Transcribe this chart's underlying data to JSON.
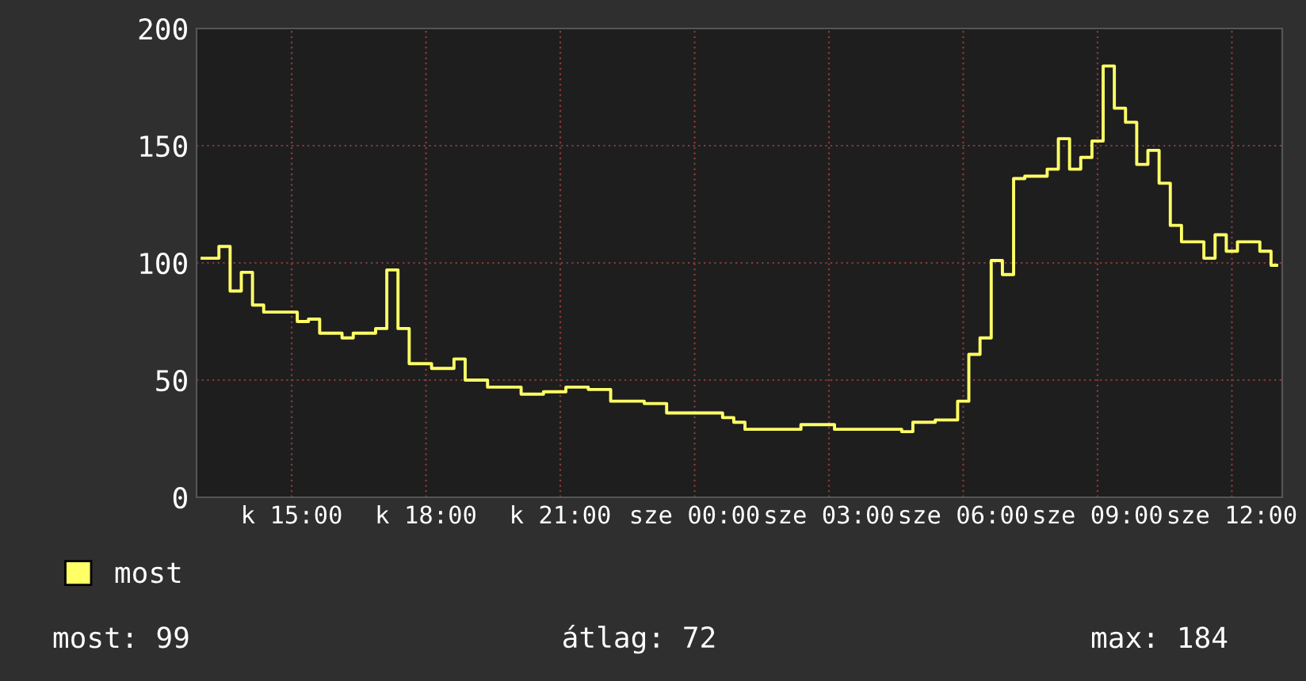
{
  "chart_data": {
    "type": "step",
    "ylim": [
      0,
      200
    ],
    "yticks": [
      0,
      50,
      100,
      150,
      200
    ],
    "categories": [
      null,
      null,
      null,
      null,
      null,
      null,
      null,
      null,
      "k 15:00",
      null,
      null,
      null,
      null,
      null,
      null,
      null,
      null,
      null,
      null,
      null,
      "k 18:00",
      null,
      null,
      null,
      null,
      null,
      null,
      null,
      null,
      null,
      null,
      null,
      "k 21:00",
      null,
      null,
      null,
      null,
      null,
      null,
      null,
      null,
      null,
      null,
      null,
      "sze 00:00",
      null,
      null,
      null,
      null,
      null,
      null,
      null,
      null,
      null,
      null,
      null,
      "sze 03:00",
      null,
      null,
      null,
      null,
      null,
      null,
      null,
      null,
      null,
      null,
      null,
      "sze 06:00",
      null,
      null,
      null,
      null,
      null,
      null,
      null,
      null,
      null,
      null,
      null,
      "sze 09:00",
      null,
      null,
      null,
      null,
      null,
      null,
      null,
      null,
      null,
      null,
      null,
      "sze 12:00",
      null,
      null,
      null,
      null
    ],
    "grid": true,
    "legend": "bottom left",
    "series": [
      {
        "name": "most",
        "color": "#ffff66",
        "values": [
          102,
          102,
          107,
          88,
          96,
          82,
          79,
          79,
          79,
          75,
          76,
          70,
          70,
          68,
          70,
          70,
          72,
          97,
          72,
          57,
          57,
          55,
          55,
          59,
          50,
          50,
          47,
          47,
          47,
          44,
          44,
          45,
          45,
          47,
          47,
          46,
          46,
          41,
          41,
          41,
          40,
          40,
          36,
          36,
          36,
          36,
          36,
          34,
          32,
          29,
          29,
          29,
          29,
          29,
          31,
          31,
          31,
          29,
          29,
          29,
          29,
          29,
          29,
          28,
          32,
          32,
          33,
          33,
          41,
          61,
          68,
          101,
          95,
          136,
          137,
          137,
          140,
          153,
          140,
          145,
          152,
          184,
          166,
          160,
          142,
          148,
          134,
          116,
          109,
          109,
          102,
          112,
          105,
          109,
          109,
          105,
          99
        ]
      }
    ],
    "annotations": [
      "most: 99",
      "átlag: 72",
      "max: 184"
    ]
  }
}
